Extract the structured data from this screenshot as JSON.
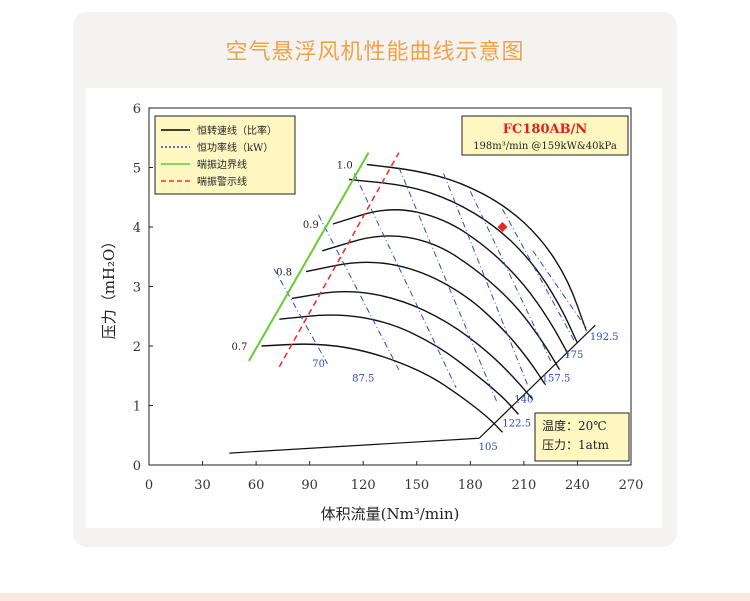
{
  "page": {
    "title": "空气悬浮风机性能曲线示意图",
    "colors": {
      "title": "#f0a24a",
      "card_bg": "#f4f3f2",
      "band": "#fbe9df"
    }
  },
  "chart_data": {
    "type": "line",
    "model": "FC180AB/N",
    "spec": "198m³/min @159kW&40kPa",
    "xlabel": "体积流量(Nm³/min)",
    "ylabel": "压力（mH₂O）",
    "xlim": [
      0,
      270
    ],
    "ylim": [
      0,
      6
    ],
    "xticks": [
      0,
      30,
      60,
      90,
      120,
      150,
      180,
      210,
      240,
      270
    ],
    "yticks": [
      0,
      1,
      2,
      3,
      4,
      5,
      6
    ],
    "legend": [
      {
        "label": "恒转速线（比率）",
        "color": "#000000",
        "style": "solid"
      },
      {
        "label": "恒功率线（kW）",
        "color": "#1f3fbf",
        "style": "dotted"
      },
      {
        "label": "喘振边界线",
        "color": "#66cc33",
        "style": "solid"
      },
      {
        "label": "喘振警示线",
        "color": "#ee3333",
        "style": "dashed"
      }
    ],
    "speed_lines": [
      {
        "label": "1.0",
        "x": [
          122,
          150,
          175,
          200,
          220,
          235,
          245
        ],
        "y": [
          5.05,
          4.95,
          4.75,
          4.35,
          3.8,
          3.1,
          2.25
        ]
      },
      {
        "label": "",
        "x": [
          112,
          145,
          170,
          195,
          215,
          230,
          240
        ],
        "y": [
          4.8,
          4.7,
          4.45,
          4.0,
          3.4,
          2.7,
          2.05
        ]
      },
      {
        "label": "0.9",
        "x": [
          103,
          135,
          165,
          190,
          210,
          225,
          235
        ],
        "y": [
          4.05,
          4.35,
          4.15,
          3.65,
          3.05,
          2.4,
          1.85
        ]
      },
      {
        "label": "",
        "x": [
          97,
          130,
          160,
          185,
          205,
          220,
          230
        ],
        "y": [
          3.6,
          3.9,
          3.75,
          3.25,
          2.7,
          2.1,
          1.6
        ]
      },
      {
        "label": "0.8",
        "x": [
          88,
          120,
          150,
          178,
          198,
          212,
          222
        ],
        "y": [
          3.25,
          3.45,
          3.3,
          2.85,
          2.3,
          1.8,
          1.35
        ]
      },
      {
        "label": "",
        "x": [
          80,
          110,
          140,
          168,
          190,
          205,
          215
        ],
        "y": [
          2.8,
          2.95,
          2.8,
          2.4,
          1.9,
          1.45,
          1.1
        ]
      },
      {
        "label": "",
        "x": [
          73,
          105,
          135,
          162,
          182,
          198,
          207
        ],
        "y": [
          2.45,
          2.55,
          2.4,
          2.0,
          1.55,
          1.15,
          0.85
        ]
      },
      {
        "label": "0.7",
        "x": [
          63,
          95,
          125,
          155,
          175,
          190,
          198
        ],
        "y": [
          2.0,
          2.05,
          1.9,
          1.55,
          1.15,
          0.8,
          0.55
        ]
      }
    ],
    "power_labels": [
      "70",
      "87.5",
      "105",
      "122.5",
      "140",
      "157.5",
      "175",
      "192.5"
    ],
    "surge_boundary": {
      "x": [
        56,
        123
      ],
      "y": [
        1.75,
        5.25
      ]
    },
    "surge_warning": {
      "x": [
        73,
        140
      ],
      "y": [
        1.65,
        5.25
      ]
    },
    "operating_point": {
      "x": 198,
      "y": 4.0
    },
    "baseline": {
      "x": [
        45,
        185
      ],
      "y": [
        0.2,
        0.45
      ]
    },
    "envelope": {
      "x": [
        185,
        250
      ],
      "y": [
        0.45,
        2.35
      ]
    },
    "note": [
      "温度：20℃",
      "压力：1atm"
    ]
  }
}
